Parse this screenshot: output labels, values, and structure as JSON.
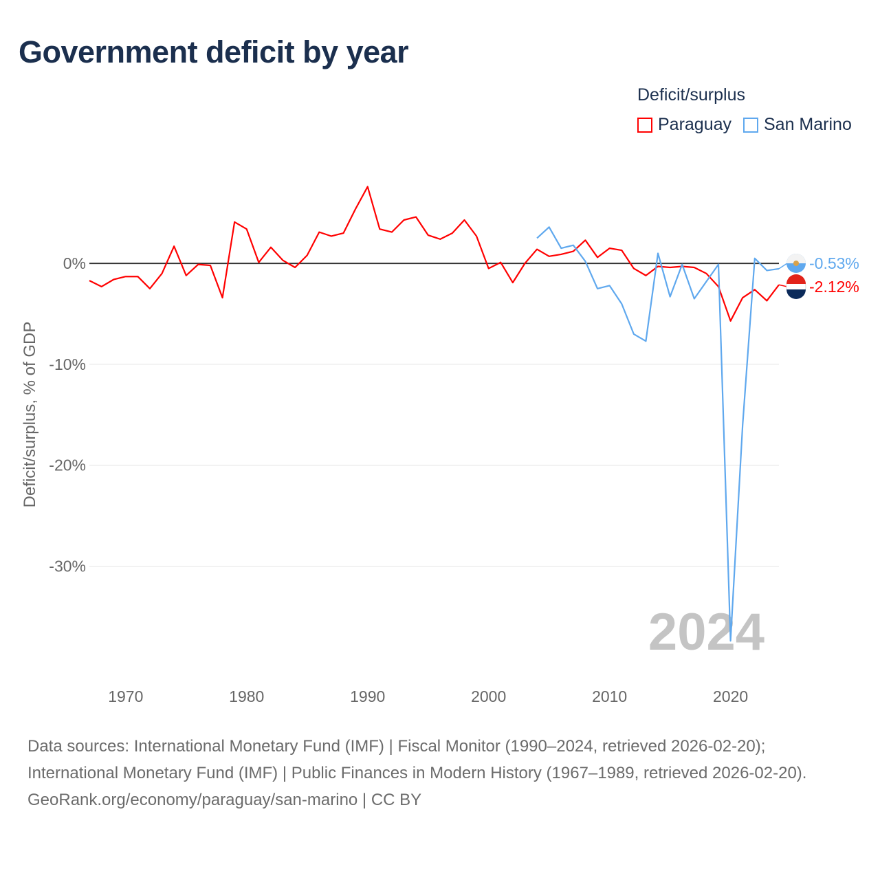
{
  "chart_data": {
    "type": "line",
    "title": "Government deficit by year",
    "xlabel": "",
    "ylabel": "Deficit/surplus, % of GDP",
    "xlim": [
      1967,
      2024
    ],
    "ylim": [
      -38,
      9
    ],
    "xticks": [
      1970,
      1980,
      1990,
      2000,
      2010,
      2020
    ],
    "yticks": [
      {
        "v": 0,
        "label": "0%"
      },
      {
        "v": -10,
        "label": "-10%"
      },
      {
        "v": -20,
        "label": "-20%"
      },
      {
        "v": -30,
        "label": "-30%"
      }
    ],
    "legend": {
      "title": "Deficit/surplus",
      "placement": "top-right"
    },
    "year_watermark": "2024",
    "series": [
      {
        "name": "Paraguay",
        "color": "#ff0000",
        "end_label": "-2.12%",
        "start": 1967,
        "values": [
          -1.7,
          -2.3,
          -1.6,
          -1.3,
          -1.3,
          -2.5,
          -1.0,
          1.7,
          -1.2,
          -0.1,
          -0.2,
          -3.4,
          4.1,
          3.4,
          0.1,
          1.6,
          0.3,
          -0.4,
          0.8,
          3.1,
          2.7,
          3.0,
          5.4,
          7.6,
          3.4,
          3.1,
          4.3,
          4.6,
          2.8,
          2.4,
          3.0,
          4.3,
          2.7,
          -0.5,
          0.1,
          -1.9,
          0.0,
          1.4,
          0.7,
          0.9,
          1.2,
          2.3,
          0.6,
          1.5,
          1.3,
          -0.5,
          -1.2,
          -0.3,
          -0.4,
          -0.3,
          -0.4,
          -1.0,
          -2.3,
          -5.7,
          -3.4,
          -2.6,
          -3.7,
          -2.12
        ]
      },
      {
        "name": "San Marino",
        "color": "#5fa8ee",
        "end_label": "-0.53%",
        "start": 2004,
        "values": [
          2.5,
          3.6,
          1.5,
          1.8,
          0.2,
          -2.5,
          -2.2,
          -4.0,
          -7.0,
          -7.7,
          1.0,
          -3.3,
          -0.1,
          -3.5,
          -1.8,
          -0.1,
          -37.4,
          -16.0,
          0.5,
          -0.7,
          -0.53
        ]
      }
    ]
  },
  "footer": {
    "sources": "Data sources: International Monetary Fund (IMF) | Fiscal Monitor (1990–2024, retrieved 2026-02-20); International Monetary Fund (IMF) | Public Finances in Modern History (1967–1989, retrieved 2026-02-20).",
    "credit": "GeoRank.org/economy/paraguay/san-marino | CC BY"
  }
}
